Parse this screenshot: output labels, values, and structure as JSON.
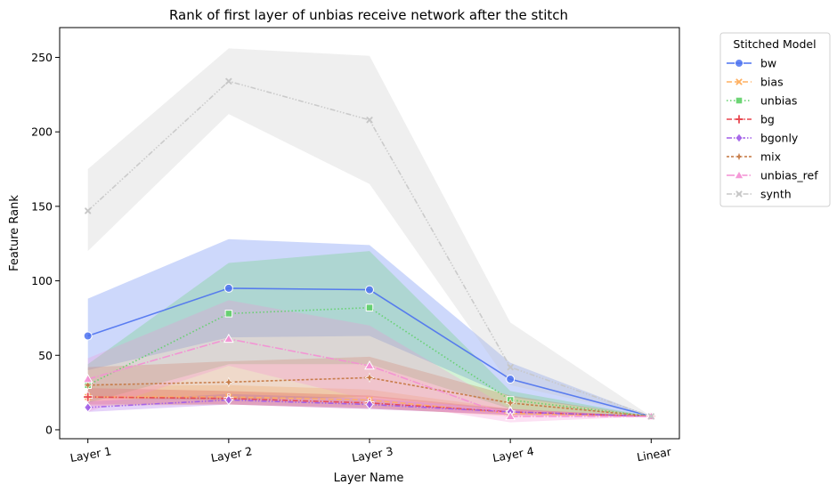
{
  "chart_data": {
    "type": "line",
    "title": "Rank of first layer of unbias receive network after the stitch",
    "xlabel": "Layer Name",
    "ylabel": "Feature Rank",
    "categories": [
      "Layer 1",
      "Layer 2",
      "Layer 3",
      "Layer 4",
      "Linear"
    ],
    "ylim": [
      -6,
      270
    ],
    "yticks": [
      0,
      50,
      100,
      150,
      200,
      250
    ],
    "grid": false,
    "legend": {
      "title": "Stitched Model",
      "placement": "outside-top-right"
    },
    "series": [
      {
        "name": "bw",
        "color": "#4c72f0",
        "dash": "",
        "marker": "circle",
        "values": [
          63,
          95,
          94,
          34,
          9
        ],
        "band_low": [
          40,
          62,
          63,
          22,
          9
        ],
        "band_high": [
          88,
          128,
          124,
          45,
          9
        ]
      },
      {
        "name": "bias",
        "color": "#ffb061",
        "dash": "6,3",
        "marker": "x",
        "values": [
          22,
          22,
          20,
          11,
          9
        ],
        "band_low": [
          16,
          17,
          15,
          9,
          9
        ],
        "band_high": [
          30,
          30,
          27,
          14,
          9
        ]
      },
      {
        "name": "unbias",
        "color": "#5fd068",
        "dash": "1.5,2.5",
        "marker": "square",
        "values": [
          30,
          78,
          82,
          20,
          9
        ],
        "band_low": [
          18,
          44,
          44,
          14,
          9
        ],
        "band_high": [
          44,
          112,
          120,
          26,
          9
        ]
      },
      {
        "name": "bg",
        "color": "#e8444d",
        "dash": "6,2,1.5,2",
        "marker": "plus",
        "values": [
          22,
          21,
          18,
          12,
          9
        ],
        "band_low": [
          17,
          17,
          14,
          10,
          9
        ],
        "band_high": [
          28,
          26,
          23,
          14,
          9
        ]
      },
      {
        "name": "bgonly",
        "color": "#a05ce8",
        "dash": "6,2,1.5,2,1.5,2",
        "marker": "diamond",
        "values": [
          15,
          20,
          17,
          12,
          9
        ],
        "band_low": [
          12,
          17,
          14,
          10,
          9
        ],
        "band_high": [
          19,
          24,
          21,
          14,
          9
        ]
      },
      {
        "name": "mix",
        "color": "#c4753f",
        "dash": "3,2",
        "marker": "star",
        "values": [
          30,
          32,
          35,
          18,
          9
        ],
        "band_low": [
          21,
          20,
          22,
          13,
          9
        ],
        "band_high": [
          42,
          46,
          49,
          23,
          9
        ]
      },
      {
        "name": "unbias_ref",
        "color": "#f48fd4",
        "dash": "9,2,1.5,2",
        "marker": "triangle",
        "values": [
          34,
          61,
          43,
          9,
          9
        ],
        "band_low": [
          12,
          43,
          20,
          5,
          9
        ],
        "band_high": [
          48,
          87,
          70,
          14,
          9
        ]
      },
      {
        "name": "synth",
        "color": "#c7c7c7",
        "dash": "6,2,1.5,2,1.5,2,1.5,2",
        "marker": "x",
        "values": [
          147,
          234,
          208,
          42,
          9
        ],
        "band_low": [
          120,
          212,
          165,
          30,
          9
        ],
        "band_high": [
          175,
          256,
          251,
          72,
          9
        ]
      }
    ]
  }
}
